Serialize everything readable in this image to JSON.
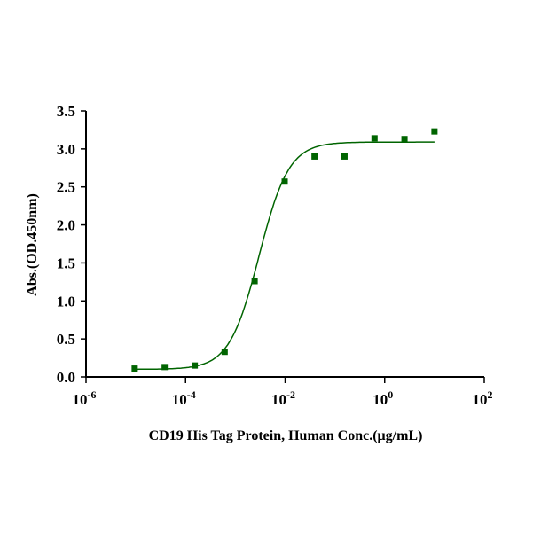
{
  "chart_data": {
    "type": "scatter",
    "xlabel": "CD19 His Tag Protein, Human Conc.(μg/mL)",
    "ylabel": "Abs.(OD.450nm)",
    "x_scale": "log",
    "xlim": [
      1e-06,
      100
    ],
    "ylim": [
      0,
      3.5
    ],
    "x_ticks": [
      {
        "base": "10",
        "exp": "-6",
        "value": 1e-06
      },
      {
        "base": "10",
        "exp": "-4",
        "value": 0.0001
      },
      {
        "base": "10",
        "exp": "-2",
        "value": 0.01
      },
      {
        "base": "10",
        "exp": "0",
        "value": 1
      },
      {
        "base": "10",
        "exp": "2",
        "value": 100
      }
    ],
    "y_ticks": [
      "0.0",
      "0.5",
      "1.0",
      "1.5",
      "2.0",
      "2.5",
      "3.0",
      "3.5"
    ],
    "grid": false,
    "color": "#006400",
    "series": [
      {
        "x": [
          9.5e-06,
          3.8e-05,
          0.000153,
          0.00061,
          0.00244,
          0.0098,
          0.039,
          0.156,
          0.625,
          2.5,
          10
        ],
        "y": [
          0.11,
          0.13,
          0.15,
          0.33,
          1.26,
          2.57,
          2.9,
          2.9,
          3.14,
          3.13,
          3.23
        ]
      }
    ],
    "fit": {
      "model": "4PL",
      "bottom": 0.1,
      "top": 3.09,
      "ec50": 0.003,
      "hill": 1.45
    }
  }
}
